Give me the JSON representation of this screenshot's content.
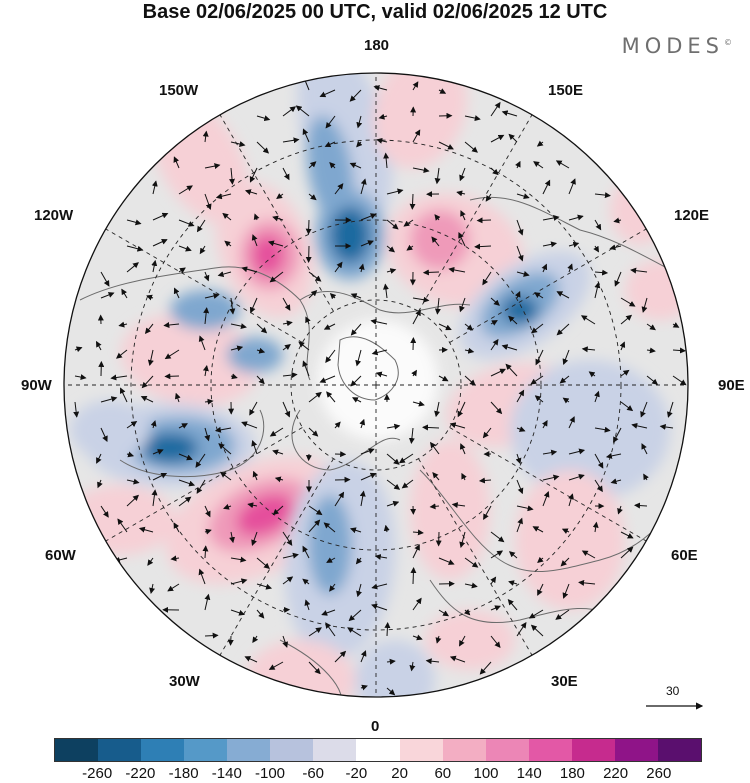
{
  "header": {
    "title": "Base 02/06/2025 00 UTC, valid 02/06/2025 12 UTC",
    "brand": "MODES",
    "brand_mark": "©"
  },
  "map": {
    "projection": "north polar stereographic",
    "longitude_labels": {
      "top": "180",
      "bottom": "0",
      "left": "90W",
      "right": "90E",
      "top_left_a": "150W",
      "top_left_b": "120W",
      "top_right_a": "150E",
      "top_right_b": "120E",
      "bottom_left_a": "60W",
      "bottom_left_b": "30W",
      "bottom_right_a": "60E",
      "bottom_right_b": "30E"
    },
    "vector_reference": "30",
    "colors": {
      "neg_strong": "#1f6aa0",
      "neg_mid": "#7fa7cf",
      "neg_weak": "#c9d2e6",
      "neutral": "#e6e6e6",
      "pos_weak": "#f6d0d6",
      "pos_mid": "#ef9ab9",
      "pos_strong": "#e54f9c"
    }
  },
  "colorbar": {
    "ticks": [
      "-260",
      "-220",
      "-180",
      "-140",
      "-100",
      "-60",
      "-20",
      "20",
      "60",
      "100",
      "140",
      "180",
      "220",
      "260"
    ],
    "colors": [
      "#0d4060",
      "#175c8c",
      "#2e7fb5",
      "#5599c8",
      "#86acd3",
      "#b7c2dd",
      "#dcdce9",
      "#ffffff",
      "#f9d6da",
      "#f3aec3",
      "#ec86b6",
      "#e358a6",
      "#c62b8e",
      "#8f1488",
      "#5a0f6e"
    ]
  }
}
